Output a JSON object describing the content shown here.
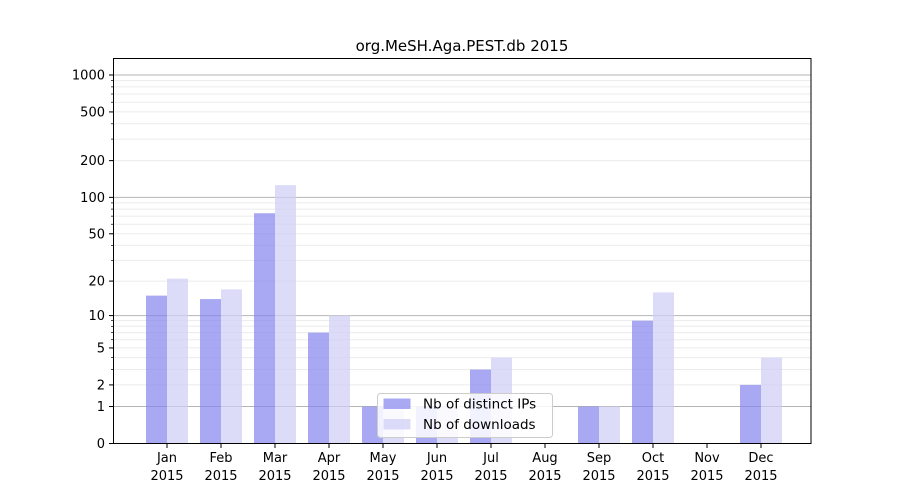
{
  "chart_data": {
    "type": "bar",
    "title": "org.MeSH.Aga.PEST.db 2015",
    "categories": [
      "Jan 2015",
      "Feb 2015",
      "Mar 2015",
      "Apr 2015",
      "May 2015",
      "Jun 2015",
      "Jul 2015",
      "Aug 2015",
      "Sep 2015",
      "Oct 2015",
      "Nov 2015",
      "Dec 2015"
    ],
    "series": [
      {
        "name": "Nb of distinct IPs",
        "color": "rgba(136,136,238,0.72)",
        "values": [
          15,
          14,
          74,
          7,
          1,
          1,
          3,
          0,
          1,
          9,
          0,
          2
        ]
      },
      {
        "name": "Nb of downloads",
        "color": "rgba(206,206,247,0.72)",
        "values": [
          21,
          17,
          126,
          10,
          1,
          1,
          4,
          0,
          1,
          16,
          0,
          4
        ]
      }
    ],
    "xlabel": "",
    "ylabel": "",
    "y_scale": "log1p",
    "ylim": [
      0,
      1000
    ],
    "y_ticks": [
      0,
      1,
      2,
      5,
      10,
      20,
      50,
      100,
      200,
      500,
      1000
    ],
    "y_major_gridlines": [
      1,
      10,
      100,
      1000
    ],
    "grid": true,
    "legend_position": "lower center",
    "colors": {
      "background": "#ffffff",
      "major_grid": "#b5b5b5",
      "minor_grid": "#ebebeb",
      "spine": "#000000",
      "tick": "#000000",
      "text": "#000000",
      "legend_border": "#cccccc",
      "legend_background": "#ffffff"
    }
  }
}
